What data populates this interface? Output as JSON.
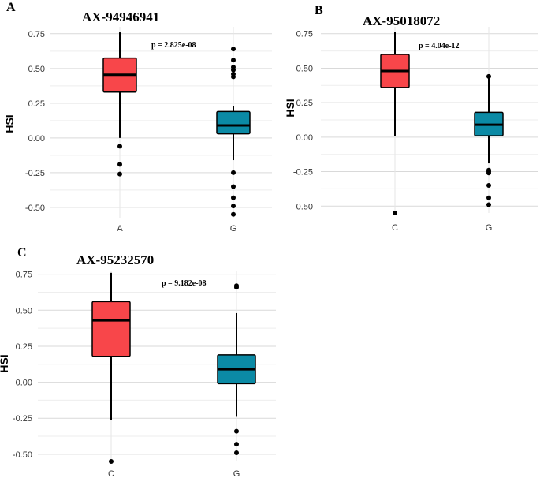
{
  "colors": {
    "A": "#f8464a",
    "C": "#f8464a",
    "G": "#0b8aa5"
  },
  "chart_data": [
    {
      "type": "box",
      "panel": "A",
      "title": "AX-94946941",
      "annotation": "p = 2.825e-08",
      "ylabel": "HSI",
      "xlabel": "",
      "ylim": [
        -0.58,
        0.8
      ],
      "yticks": [
        0.75,
        0.5,
        0.25,
        0.0,
        -0.25,
        -0.5
      ],
      "ytick_labels": [
        "0.75",
        "0.50",
        "0.25",
        "0.00",
        "-0.25",
        "-0.50"
      ],
      "categories": [
        "A",
        "G"
      ],
      "boxes": [
        {
          "category": "A",
          "min": 0.0,
          "q1": 0.33,
          "median": 0.455,
          "q3": 0.575,
          "max": 0.76,
          "outliers": [
            -0.06,
            -0.19,
            -0.26
          ]
        },
        {
          "category": "G",
          "min": -0.16,
          "q1": 0.03,
          "median": 0.09,
          "q3": 0.19,
          "max": 0.23,
          "outliers": [
            0.64,
            0.56,
            0.51,
            0.49,
            0.46,
            0.44,
            -0.25,
            -0.35,
            -0.43,
            -0.49,
            -0.55
          ]
        }
      ]
    },
    {
      "type": "box",
      "panel": "B",
      "title": "AX-95018072",
      "annotation": "p = 4.04e-12",
      "ylabel": "HSI",
      "xlabel": "",
      "ylim": [
        -0.55,
        0.8
      ],
      "yticks": [
        0.75,
        0.5,
        0.25,
        0.0,
        -0.25,
        -0.5
      ],
      "ytick_labels": [
        "0.75",
        "0.50",
        "0.25",
        "0.00",
        "-0.25",
        "-0.50"
      ],
      "categories": [
        "C",
        "G"
      ],
      "boxes": [
        {
          "category": "C",
          "min": 0.01,
          "q1": 0.36,
          "median": 0.48,
          "q3": 0.6,
          "max": 0.76,
          "outliers": [
            -0.55
          ]
        },
        {
          "category": "G",
          "min": -0.19,
          "q1": 0.01,
          "median": 0.09,
          "q3": 0.18,
          "max": 0.43,
          "outliers": [
            0.44,
            -0.24,
            -0.25,
            -0.26,
            -0.35,
            -0.44,
            -0.49
          ]
        }
      ]
    },
    {
      "type": "box",
      "panel": "C",
      "title": "AX-95232570",
      "annotation": "p = 9.182e-08",
      "ylabel": "HSI",
      "xlabel": "",
      "ylim": [
        -0.55,
        0.77
      ],
      "yticks": [
        0.75,
        0.5,
        0.25,
        0.0,
        -0.25,
        -0.5
      ],
      "ytick_labels": [
        "0.75",
        "0.50",
        "0.25",
        "0.00",
        "-0.25",
        "-0.50"
      ],
      "categories": [
        "C",
        "G"
      ],
      "boxes": [
        {
          "category": "C",
          "min": -0.26,
          "q1": 0.18,
          "median": 0.43,
          "q3": 0.56,
          "max": 0.76,
          "outliers": [
            -0.55
          ]
        },
        {
          "category": "G",
          "min": -0.24,
          "q1": -0.01,
          "median": 0.09,
          "q3": 0.19,
          "max": 0.48,
          "outliers": [
            0.67,
            0.66,
            -0.34,
            -0.43,
            -0.49
          ]
        }
      ]
    }
  ]
}
